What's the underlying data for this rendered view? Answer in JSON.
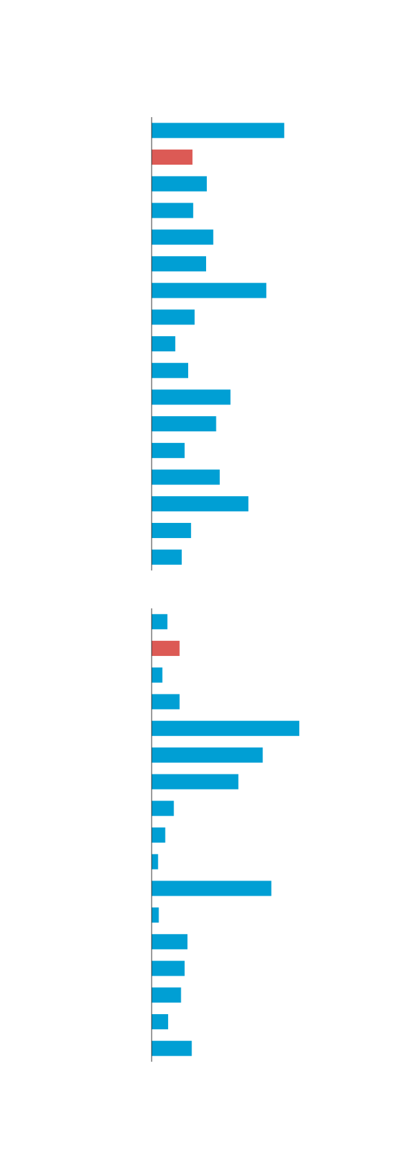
{
  "chart_data": [
    {
      "type": "barh",
      "xlim": [
        0,
        300
      ],
      "values": [
        185,
        57,
        77,
        58,
        86,
        76,
        160,
        60,
        33,
        51,
        110,
        90,
        46,
        95,
        135,
        55,
        42
      ],
      "colors": [
        "#009fd4",
        "#dc5a55",
        "#009fd4",
        "#009fd4",
        "#009fd4",
        "#009fd4",
        "#009fd4",
        "#009fd4",
        "#009fd4",
        "#009fd4",
        "#009fd4",
        "#009fd4",
        "#009fd4",
        "#009fd4",
        "#009fd4",
        "#009fd4",
        "#009fd4"
      ]
    },
    {
      "type": "barh",
      "xlim": [
        0,
        300
      ],
      "values": [
        22,
        39,
        15,
        39,
        206,
        155,
        121,
        31,
        19,
        9,
        167,
        10,
        50,
        46,
        41,
        23,
        56
      ],
      "colors": [
        "#009fd4",
        "#dc5a55",
        "#009fd4",
        "#009fd4",
        "#009fd4",
        "#009fd4",
        "#009fd4",
        "#009fd4",
        "#009fd4",
        "#009fd4",
        "#009fd4",
        "#009fd4",
        "#009fd4",
        "#009fd4",
        "#009fd4",
        "#009fd4",
        "#009fd4"
      ]
    }
  ]
}
